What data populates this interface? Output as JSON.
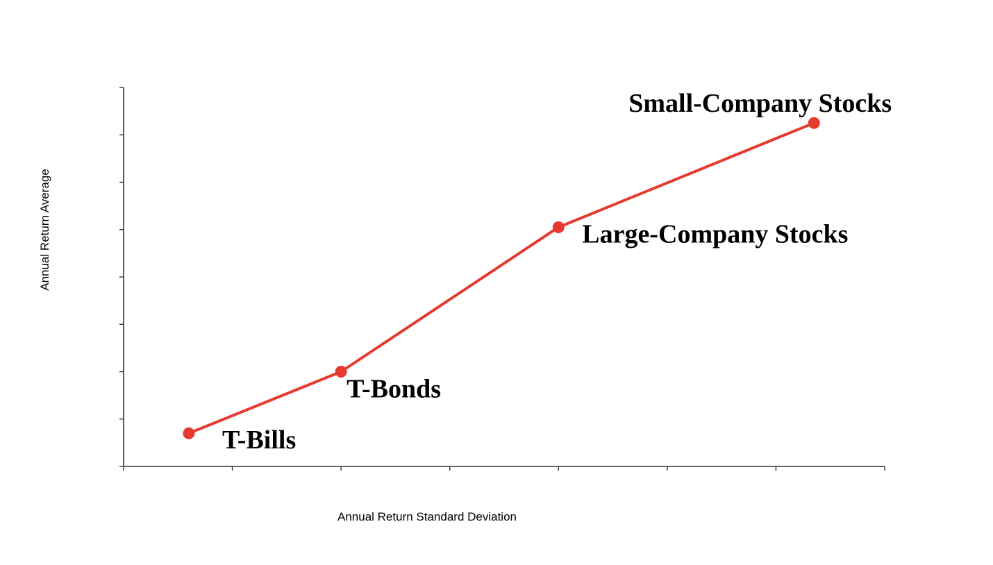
{
  "chart_data": {
    "type": "line",
    "title": "",
    "xlabel": "Annual Return Standard Deviation",
    "ylabel": "Annual Return Average",
    "x_tick_count": 7,
    "y_tick_count": 8,
    "grid": false,
    "legend": "none",
    "series_color": "#e43a2f",
    "series": [
      {
        "points": [
          {
            "label": "T-Bills",
            "x": 0.6,
            "y": 0.7
          },
          {
            "label": "T-Bonds",
            "x": 2.0,
            "y": 2.0
          },
          {
            "label": "Large-Company Stocks",
            "x": 4.0,
            "y": 5.05
          },
          {
            "label": "Small-Company Stocks",
            "x": 6.35,
            "y": 7.25
          }
        ]
      }
    ],
    "xlim": [
      0,
      7
    ],
    "ylim": [
      0,
      8
    ]
  }
}
